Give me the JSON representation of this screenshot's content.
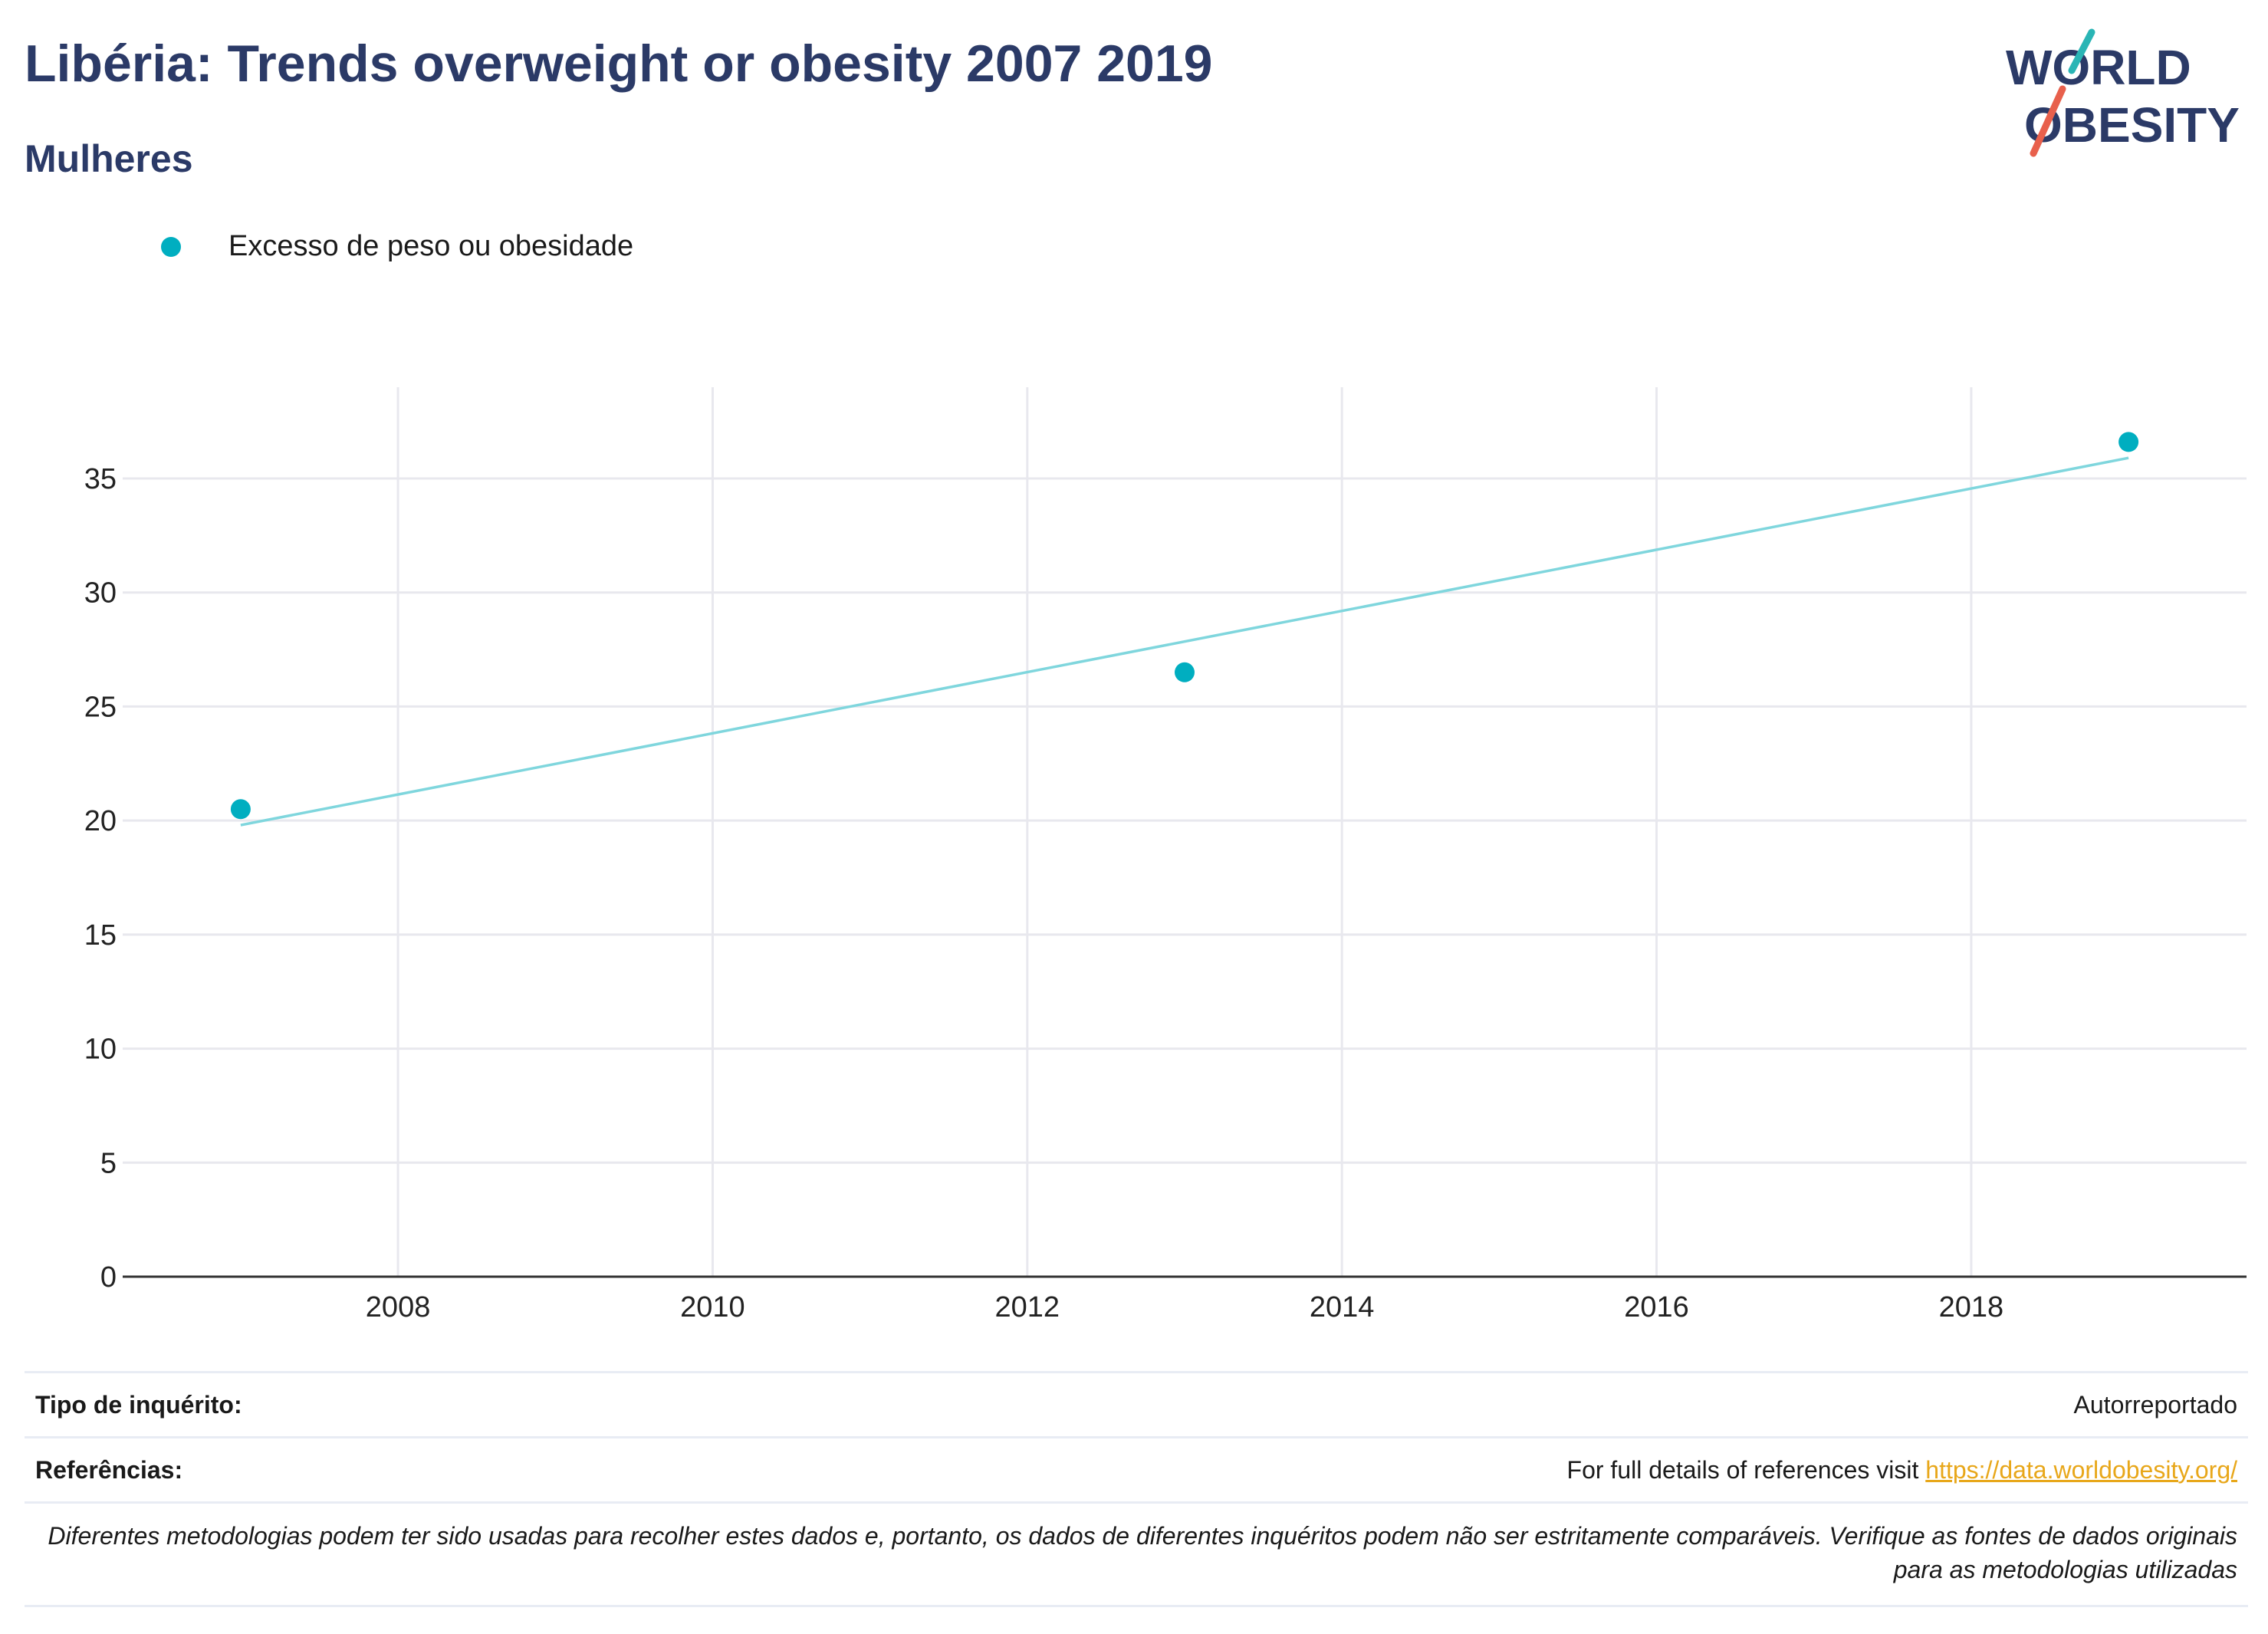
{
  "header": {
    "title": "Libéria: Trends overweight or obesity 2007 2019",
    "subtitle": "Mulheres"
  },
  "logo": {
    "line1": "WORLD",
    "line2": "OBESITY"
  },
  "legend": {
    "label": "Excesso de peso ou obesidade"
  },
  "colors": {
    "title": "#2b3a67",
    "series": "#00aec0",
    "trendline": "#7fd6dd",
    "link": "#e8a71a",
    "logo_teal": "#2ab5b5",
    "logo_red": "#e8604c"
  },
  "chart_data": {
    "type": "scatter",
    "title": "Libéria: Trends overweight or obesity 2007 2019",
    "subtitle": "Mulheres",
    "series": [
      {
        "name": "Excesso de peso ou obesidade",
        "points": [
          {
            "x": 2007,
            "y": 20.5
          },
          {
            "x": 2013,
            "y": 26.5
          },
          {
            "x": 2019,
            "y": 36.6
          }
        ]
      }
    ],
    "trendline": {
      "x": [
        2007,
        2019
      ],
      "y": [
        19.8,
        35.9
      ]
    },
    "xlim": [
      2006.25,
      2019.75
    ],
    "ylim": [
      0,
      39
    ],
    "xticks": [
      2008,
      2010,
      2012,
      2014,
      2016,
      2018
    ],
    "yticks": [
      0,
      5,
      10,
      15,
      20,
      25,
      30,
      35
    ],
    "grid": true,
    "legend_position": "top-left"
  },
  "footer": {
    "survey_label": "Tipo de inquérito:",
    "survey_value": "Autorreportado",
    "references_label": "Referências:",
    "references_text": "For full details of references visit",
    "references_link": "https://data.worldobesity.org/",
    "note": "Diferentes metodologias podem ter sido usadas para recolher estes dados e, portanto, os dados de diferentes inquéritos podem não ser estritamente comparáveis. Verifique as fontes de dados originais para as metodologias utilizadas"
  }
}
